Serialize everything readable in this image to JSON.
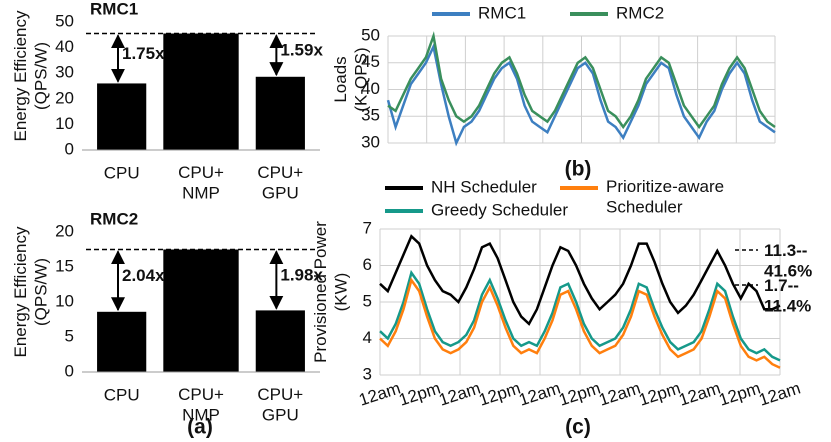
{
  "chart_data": [
    {
      "type": "bar",
      "title": "RMC1",
      "ylabel": "Energy Efficiency\n(QPS/W)",
      "categories": [
        "CPU",
        "CPU+\nNMP",
        "CPU+\nGPU"
      ],
      "values": [
        26,
        45.5,
        28.6
      ],
      "color": "#000000",
      "ylim": [
        0,
        50
      ],
      "yticks": [
        0,
        10,
        20,
        30,
        40,
        50
      ],
      "annotations": [
        "1.75x",
        "1.59x"
      ]
    },
    {
      "type": "bar",
      "title": "RMC2",
      "ylabel": "Energy Efficiency\n(QPS/W)",
      "categories": [
        "CPU",
        "CPU+\nNMP",
        "CPU+\nGPU"
      ],
      "values": [
        8.6,
        17.5,
        8.8
      ],
      "color": "#000000",
      "ylim": [
        0,
        20
      ],
      "yticks": [
        0,
        5,
        10,
        15,
        20
      ],
      "annotations": [
        "2.04x",
        "1.98x"
      ],
      "caption": "(a)"
    },
    {
      "type": "line",
      "ylabel": "Loads\n(K-QPS)",
      "ylim": [
        30,
        50
      ],
      "yticks": [
        30,
        35,
        40,
        45,
        50
      ],
      "grid": true,
      "caption": "(b)",
      "series": [
        {
          "name": "RMC1",
          "color": "#3d7fc1",
          "values": [
            38,
            33,
            37,
            41,
            43,
            45,
            48,
            41,
            35,
            30,
            33,
            34,
            36,
            39,
            42,
            44,
            45,
            42,
            37,
            34,
            33,
            32,
            35,
            38,
            41,
            44,
            45,
            43,
            38,
            34,
            33,
            31,
            34,
            37,
            41,
            43,
            45,
            44,
            39,
            35,
            33,
            31,
            34,
            36,
            40,
            43,
            45,
            43,
            38,
            34,
            33,
            32
          ]
        },
        {
          "name": "RMC2",
          "color": "#3a8f5c",
          "values": [
            37,
            36,
            39,
            42,
            44,
            46,
            50,
            42,
            38,
            35,
            34,
            35,
            37,
            40,
            43,
            45,
            46,
            43,
            39,
            36,
            35,
            34,
            36,
            39,
            42,
            45,
            46,
            44,
            40,
            36,
            35,
            33,
            35,
            38,
            42,
            44,
            46,
            45,
            41,
            37,
            35,
            33,
            35,
            37,
            41,
            44,
            46,
            44,
            40,
            36,
            34,
            33
          ]
        }
      ]
    },
    {
      "type": "line",
      "ylabel": "Provisioned Power\n(KW)",
      "ylim": [
        3,
        7
      ],
      "yticks": [
        3,
        4,
        5,
        6,
        7
      ],
      "grid": true,
      "caption": "(c)",
      "xtick_labels": [
        "12am",
        "12pm",
        "12am",
        "12pm",
        "12am",
        "12pm",
        "12am",
        "12pm",
        "12am",
        "12pm",
        "12am"
      ],
      "annotations": [
        "11.3--\n41.6%",
        "1.7--\n11.4%"
      ],
      "series": [
        {
          "name": "NH Scheduler",
          "color": "#000000",
          "values": [
            5.5,
            5.3,
            5.8,
            6.3,
            6.8,
            6.6,
            6.0,
            5.6,
            5.3,
            5.2,
            5.0,
            5.4,
            5.9,
            6.5,
            6.6,
            6.2,
            5.6,
            5.0,
            4.6,
            4.4,
            4.8,
            5.4,
            6.0,
            6.5,
            6.4,
            6.0,
            5.5,
            5.1,
            4.8,
            5.0,
            5.2,
            5.5,
            6.0,
            6.6,
            6.6,
            6.1,
            5.5,
            5.0,
            4.7,
            4.9,
            5.2,
            5.6,
            6.0,
            6.4,
            6.0,
            5.5,
            5.1,
            5.5,
            5.3,
            4.8,
            4.8,
            4.9
          ]
        },
        {
          "name": "Greedy Scheduler",
          "color": "#16998a",
          "values": [
            4.2,
            4.0,
            4.4,
            5.0,
            5.8,
            5.5,
            4.8,
            4.2,
            3.9,
            3.8,
            3.9,
            4.1,
            4.5,
            5.2,
            5.6,
            5.1,
            4.5,
            4.0,
            3.8,
            3.9,
            3.8,
            4.2,
            4.7,
            5.4,
            5.5,
            5.0,
            4.4,
            4.0,
            3.8,
            3.9,
            4.0,
            4.3,
            4.8,
            5.5,
            5.4,
            4.8,
            4.3,
            3.9,
            3.7,
            3.8,
            3.9,
            4.2,
            4.8,
            5.5,
            5.3,
            4.6,
            4.0,
            3.7,
            3.6,
            3.7,
            3.5,
            3.4
          ]
        },
        {
          "name": "Prioritize-aware\nScheduler",
          "color": "#ff7f0e",
          "values": [
            4.0,
            3.8,
            4.2,
            4.8,
            5.6,
            5.3,
            4.6,
            4.0,
            3.7,
            3.6,
            3.7,
            3.9,
            4.3,
            5.0,
            5.4,
            4.9,
            4.3,
            3.8,
            3.6,
            3.7,
            3.6,
            4.0,
            4.5,
            5.2,
            5.3,
            4.8,
            4.2,
            3.8,
            3.6,
            3.7,
            3.8,
            4.1,
            4.6,
            5.3,
            5.2,
            4.6,
            4.1,
            3.7,
            3.5,
            3.6,
            3.7,
            4.0,
            4.6,
            5.3,
            5.1,
            4.4,
            3.8,
            3.5,
            3.4,
            3.5,
            3.3,
            3.2
          ]
        }
      ]
    }
  ]
}
